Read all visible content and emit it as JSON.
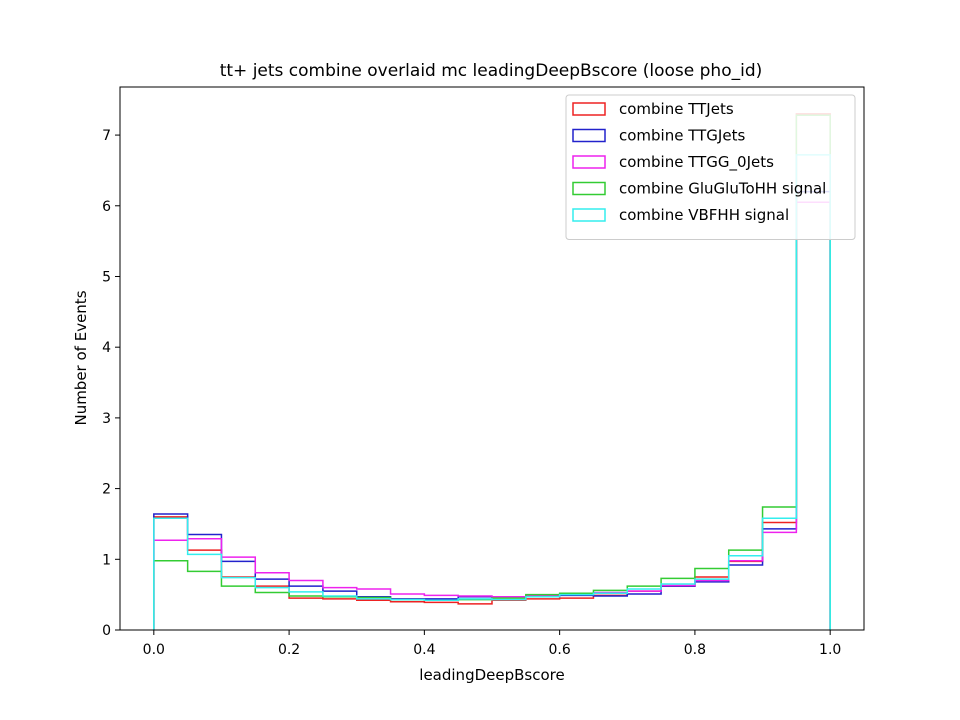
{
  "chart_data": {
    "type": "histogram-step",
    "title": "tt+ jets combine overlaid mc leadingDeepBscore (loose pho_id)",
    "xlabel": "leadingDeepBscore",
    "ylabel": "Number of Events",
    "xlim": [
      -0.05,
      1.05
    ],
    "ylim": [
      0,
      7.68
    ],
    "xticks": [
      "0.0",
      "0.2",
      "0.4",
      "0.6",
      "0.8",
      "1.0"
    ],
    "yticks": [
      "0",
      "1",
      "2",
      "3",
      "4",
      "5",
      "6",
      "7"
    ],
    "bin_edges": [
      0.0,
      0.05,
      0.1,
      0.15,
      0.2,
      0.25,
      0.3,
      0.35,
      0.4,
      0.45,
      0.5,
      0.55,
      0.6,
      0.65,
      0.7,
      0.75,
      0.8,
      0.85,
      0.9,
      0.95,
      1.0
    ],
    "legend_position": "top-right",
    "series": [
      {
        "name": "combine TTJets",
        "color": "#ee2222",
        "values": [
          1.6,
          1.13,
          0.75,
          0.62,
          0.45,
          0.44,
          0.42,
          0.4,
          0.39,
          0.37,
          0.42,
          0.44,
          0.45,
          0.49,
          0.55,
          0.62,
          0.75,
          0.97,
          1.52,
          7.3
        ]
      },
      {
        "name": "combine TTGJets",
        "color": "#2222cc",
        "values": [
          1.64,
          1.35,
          0.97,
          0.72,
          0.62,
          0.55,
          0.47,
          0.44,
          0.44,
          0.47,
          0.46,
          0.47,
          0.49,
          0.48,
          0.51,
          0.62,
          0.68,
          0.92,
          1.43,
          6.2
        ]
      },
      {
        "name": "combine TTGG_0Jets",
        "color": "#ee22ee",
        "values": [
          1.27,
          1.29,
          1.03,
          0.81,
          0.7,
          0.6,
          0.58,
          0.51,
          0.49,
          0.48,
          0.47,
          0.49,
          0.51,
          0.53,
          0.55,
          0.63,
          0.7,
          0.98,
          1.38,
          6.05
        ]
      },
      {
        "name": "combine GluGluToHH signal",
        "color": "#33cc33",
        "values": [
          0.98,
          0.83,
          0.62,
          0.53,
          0.48,
          0.47,
          0.46,
          0.43,
          0.42,
          0.43,
          0.45,
          0.5,
          0.52,
          0.56,
          0.62,
          0.73,
          0.87,
          1.13,
          1.74,
          7.28
        ]
      },
      {
        "name": "combine VBFHH signal",
        "color": "#33eeee",
        "values": [
          1.58,
          1.07,
          0.74,
          0.6,
          0.54,
          0.48,
          0.44,
          0.43,
          0.42,
          0.44,
          0.43,
          0.47,
          0.5,
          0.52,
          0.58,
          0.65,
          0.72,
          1.05,
          1.58,
          6.72
        ]
      }
    ]
  }
}
